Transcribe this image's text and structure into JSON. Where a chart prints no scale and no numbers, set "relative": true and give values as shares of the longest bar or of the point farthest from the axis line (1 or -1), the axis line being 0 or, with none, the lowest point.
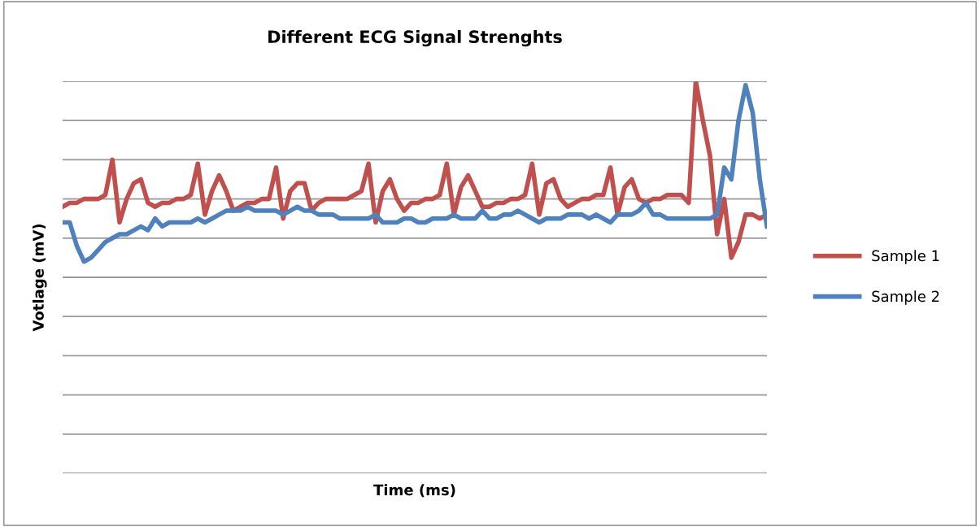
{
  "chart_data": {
    "type": "line",
    "title": "Different ECG Signal Strenghts",
    "xlabel": "Time (ms)",
    "ylabel": "Votlage (mV)",
    "relative": true,
    "grid": "y",
    "legend": "right",
    "line_style": "solid",
    "marker": "none",
    "categories": [
      null,
      null,
      null,
      null,
      null,
      null,
      null,
      null,
      null,
      null,
      null,
      null,
      null,
      null,
      null,
      null,
      null,
      null,
      null,
      null,
      null,
      null,
      null,
      null,
      null,
      null,
      null,
      null,
      null,
      null,
      null,
      null,
      null,
      null,
      null,
      null,
      null,
      null,
      null,
      null,
      null,
      null,
      null,
      null,
      null,
      null,
      null,
      null,
      null,
      null,
      null,
      null,
      null,
      null,
      null,
      null,
      null,
      null,
      null,
      null,
      null,
      null,
      null,
      null,
      null,
      null,
      null,
      null,
      null,
      null,
      null,
      null,
      null,
      null,
      null,
      null,
      null,
      null,
      null,
      null,
      null,
      null,
      null,
      null,
      null,
      null,
      null,
      null,
      null,
      null,
      null,
      null,
      null,
      null,
      null,
      null,
      null,
      null,
      null,
      null
    ],
    "series": [
      {
        "name": "Sample 1",
        "color": "#c0504d",
        "values": [
          0.68,
          0.69,
          0.69,
          0.7,
          0.7,
          0.7,
          0.71,
          0.8,
          0.64,
          0.7,
          0.74,
          0.75,
          0.69,
          0.68,
          0.69,
          0.69,
          0.7,
          0.7,
          0.71,
          0.79,
          0.66,
          0.72,
          0.76,
          0.72,
          0.67,
          0.68,
          0.69,
          0.69,
          0.7,
          0.7,
          0.78,
          0.65,
          0.72,
          0.74,
          0.74,
          0.67,
          0.69,
          0.7,
          0.7,
          0.7,
          0.7,
          0.71,
          0.72,
          0.79,
          0.64,
          0.72,
          0.75,
          0.7,
          0.67,
          0.69,
          0.69,
          0.7,
          0.7,
          0.71,
          0.79,
          0.66,
          0.73,
          0.76,
          0.72,
          0.68,
          0.68,
          0.69,
          0.69,
          0.7,
          0.7,
          0.71,
          0.79,
          0.66,
          0.74,
          0.75,
          0.7,
          0.68,
          0.69,
          0.7,
          0.7,
          0.71,
          0.71,
          0.78,
          0.66,
          0.73,
          0.75,
          0.7,
          0.69,
          0.7,
          0.7,
          0.71,
          0.71,
          0.71,
          0.69,
          1.0,
          0.9,
          0.81,
          0.61,
          0.7,
          0.55,
          0.59,
          0.66,
          0.66,
          0.65,
          0.66
        ]
      },
      {
        "name": "Sample 2",
        "color": "#4f81bd",
        "values": [
          0.64,
          0.64,
          0.58,
          0.54,
          0.55,
          0.57,
          0.59,
          0.6,
          0.61,
          0.61,
          0.62,
          0.63,
          0.62,
          0.65,
          0.63,
          0.64,
          0.64,
          0.64,
          0.64,
          0.65,
          0.64,
          0.65,
          0.66,
          0.67,
          0.67,
          0.67,
          0.68,
          0.67,
          0.67,
          0.67,
          0.67,
          0.66,
          0.67,
          0.68,
          0.67,
          0.67,
          0.66,
          0.66,
          0.66,
          0.65,
          0.65,
          0.65,
          0.65,
          0.65,
          0.66,
          0.64,
          0.64,
          0.64,
          0.65,
          0.65,
          0.64,
          0.64,
          0.65,
          0.65,
          0.65,
          0.66,
          0.65,
          0.65,
          0.65,
          0.67,
          0.65,
          0.65,
          0.66,
          0.66,
          0.67,
          0.66,
          0.65,
          0.64,
          0.65,
          0.65,
          0.65,
          0.66,
          0.66,
          0.66,
          0.65,
          0.66,
          0.65,
          0.64,
          0.66,
          0.66,
          0.66,
          0.67,
          0.69,
          0.66,
          0.66,
          0.65,
          0.65,
          0.65,
          0.65,
          0.65,
          0.65,
          0.65,
          0.66,
          0.78,
          0.75,
          0.9,
          0.99,
          0.92,
          0.75,
          0.63
        ]
      }
    ]
  }
}
